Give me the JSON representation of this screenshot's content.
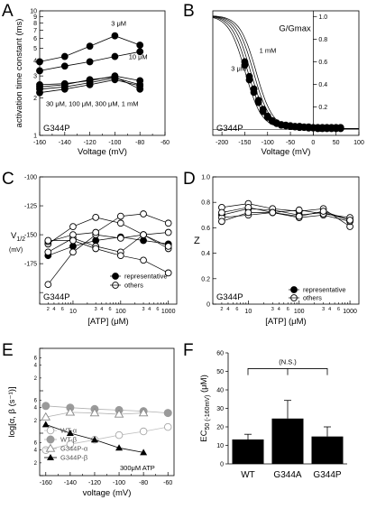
{
  "figure": {
    "panels": [
      {
        "id": "A",
        "annotation": "G344P",
        "conc_labels": [
          "3 μM",
          "10 μM",
          "30 μM, 100 μM, 300 μM, 1 mM"
        ]
      },
      {
        "id": "B",
        "annotation": "G344P",
        "conc_labels": [
          "1 mM",
          "3 μM"
        ]
      },
      {
        "id": "C",
        "annotation": "G344P",
        "legend": [
          "representative",
          "others"
        ]
      },
      {
        "id": "D",
        "annotation": "G344P",
        "legend": [
          "representative",
          "others"
        ]
      },
      {
        "id": "E",
        "annotation": "300μM ATP",
        "legend": [
          "WT-α",
          "WT-β",
          "G344P-α",
          "G344P-β"
        ]
      },
      {
        "id": "F",
        "significance": "(N.S.)"
      }
    ]
  },
  "chart_data": [
    {
      "panel": "A",
      "type": "line",
      "xlabel": "Voltage (mV)",
      "ylabel": "activation time constant (ms)",
      "xlim": [
        -160,
        -60
      ],
      "ylim": [
        1,
        10
      ],
      "yscale": "log",
      "xticks": [
        -160,
        -140,
        -120,
        -100,
        -80,
        -60
      ],
      "yticks": [
        1,
        2,
        3,
        4,
        5,
        6,
        7,
        8,
        9,
        10
      ],
      "ytick_labels": [
        "1",
        "2",
        "3",
        "4",
        "5",
        "6",
        "7",
        "8",
        "9",
        "10"
      ],
      "x": [
        -160,
        -140,
        -120,
        -100,
        -80
      ],
      "series": [
        {
          "name": "3 μM",
          "values": [
            3.9,
            4.3,
            5.2,
            6.3,
            5.3
          ]
        },
        {
          "name": "10 μM",
          "values": [
            3.3,
            3.6,
            3.9,
            4.3,
            4.7
          ]
        },
        {
          "values": [
            2.55,
            2.6,
            2.75,
            3.0,
            2.75
          ]
        },
        {
          "values": [
            2.45,
            2.55,
            2.8,
            2.95,
            2.35
          ]
        },
        {
          "values": [
            2.35,
            2.45,
            2.65,
            2.9,
            2.55
          ]
        },
        {
          "values": [
            2.2,
            2.35,
            2.55,
            2.8,
            2.5
          ]
        }
      ]
    },
    {
      "panel": "B",
      "type": "line",
      "xlabel": "Voltage (mV)",
      "ylabel": "G/Gmax",
      "xlim": [
        -220,
        100
      ],
      "ylim": [
        -0.05,
        1.05
      ],
      "xticks": [
        -200,
        -150,
        -100,
        -50,
        0,
        50,
        100
      ],
      "yticks": [
        0,
        0.2,
        0.4,
        0.6,
        0.8,
        1.0
      ],
      "ytick_labels": [
        "0",
        "0.2",
        "0.4",
        "0.6",
        "0.8",
        "1.0"
      ],
      "x": [
        -150,
        -140,
        -130,
        -120,
        -110,
        -100,
        -90,
        -80,
        -70,
        -60,
        -50,
        -40,
        -30,
        -20,
        -10,
        0,
        10,
        20,
        30,
        40,
        50,
        60
      ],
      "series": [
        {
          "name": "3 μM",
          "values": [
            0.6,
            0.47,
            0.36,
            0.26,
            0.18,
            0.12,
            0.08,
            0.06,
            0.045,
            0.04,
            0.035,
            0.03,
            0.03,
            0.025,
            0.025,
            0.02,
            0.02,
            0.02,
            0.02,
            0.02,
            0.02,
            0.02
          ]
        },
        {
          "name": "1 mM",
          "values": [
            0.57,
            0.44,
            0.33,
            0.24,
            0.16,
            0.11,
            0.075,
            0.055,
            0.04,
            0.035,
            0.03,
            0.025,
            0.02,
            0.02,
            0.015,
            0.015,
            0.01,
            0.01,
            0.01,
            0.01,
            0.01,
            0.01
          ]
        }
      ]
    },
    {
      "panel": "C",
      "type": "line",
      "xlabel": "[ATP] (μM)",
      "ylabel": "V1/2 (mV)",
      "xscale": "log",
      "xlim": [
        2,
        1500
      ],
      "ylim": [
        -210,
        -100
      ],
      "xticks": [
        10,
        100,
        1000
      ],
      "xtick_labels": [
        "10",
        "100",
        "1000"
      ],
      "yticks": [
        -200,
        -175,
        -150,
        -125,
        -100
      ],
      "ytick_labels": [
        "",
        "-175",
        "-150",
        "-125",
        "-100"
      ],
      "x": [
        3,
        10,
        30,
        100,
        300,
        1000
      ],
      "series": [
        {
          "name": "representative",
          "values": [
            -168,
            -160,
            -155,
            -152,
            -155,
            -158
          ]
        },
        {
          "name": "others",
          "values": [
            -193,
            -165,
            -150,
            -153,
            -150,
            -162
          ]
        },
        {
          "values": [
            -158,
            -143,
            -135,
            -140,
            -150,
            -148
          ]
        },
        {
          "values": [
            -165,
            -153,
            -160,
            -165,
            -150,
            -160
          ]
        },
        {
          "values": [
            -156,
            -150,
            -148,
            -134,
            -132,
            -140
          ]
        },
        {
          "values": [
            -155,
            -155,
            -162,
            -168,
            -172,
            -183
          ]
        }
      ]
    },
    {
      "panel": "D",
      "type": "line",
      "xlabel": "[ATP] (μM)",
      "ylabel": "Z",
      "xscale": "log",
      "xlim": [
        2,
        1500
      ],
      "ylim": [
        0,
        1
      ],
      "xticks": [
        10,
        100,
        1000
      ],
      "xtick_labels": [
        "10",
        "100",
        "1000"
      ],
      "yticks": [
        0,
        0.2,
        0.4,
        0.6,
        0.8,
        1.0
      ],
      "ytick_labels": [
        "0",
        "0.2",
        "0.4",
        "0.6",
        "0.8",
        "1.0"
      ],
      "x": [
        3,
        10,
        30,
        100,
        300,
        1000
      ],
      "series": [
        {
          "name": "representative",
          "values": [
            0.7,
            0.75,
            0.74,
            0.7,
            0.72,
            0.66
          ]
        },
        {
          "name": "others",
          "values": [
            0.76,
            0.79,
            0.75,
            0.73,
            0.75,
            0.61
          ]
        },
        {
          "values": [
            0.68,
            0.7,
            0.72,
            0.68,
            0.7,
            0.65
          ]
        },
        {
          "values": [
            0.72,
            0.76,
            0.72,
            0.74,
            0.71,
            0.68
          ]
        },
        {
          "values": [
            0.65,
            0.72,
            0.72,
            0.69,
            0.73,
            0.66
          ]
        }
      ]
    },
    {
      "panel": "E",
      "type": "line",
      "xlabel": "voltage (mV)",
      "ylabel": "log[α, β (s⁻¹)]",
      "xlim": [
        -165,
        -55
      ],
      "ylim": [
        -1,
        2
      ],
      "yscale": "log",
      "xticks": [
        -160,
        -140,
        -120,
        -100,
        -80,
        -60
      ],
      "yticks": [
        -1,
        0,
        1,
        2
      ],
      "ytick_labels": [
        "10⁻¹",
        "10⁰",
        "10¹",
        "10²"
      ],
      "x": [
        -160,
        -140,
        -120,
        -100,
        -80,
        -60
      ],
      "series": [
        {
          "name": "WT-α",
          "values": [
            0.4,
            0.55,
            0.7,
            0.9,
            1.1,
            1.4
          ]
        },
        {
          "name": "WT-β",
          "values": [
            4.4,
            4.0,
            3.7,
            3.5,
            3.3,
            3.0
          ]
        },
        {
          "name": "G344P-α",
          "values": [
            2.4,
            3.1,
            3.0,
            2.8,
            3.0,
            null
          ]
        },
        {
          "name": "G344P-β",
          "values": [
            1.6,
            1.0,
            0.7,
            0.45,
            0.35,
            null
          ]
        }
      ]
    },
    {
      "panel": "F",
      "type": "bar",
      "ylabel": "EC50 (-160mV) (μM)",
      "ylim": [
        0,
        60
      ],
      "yticks": [
        0,
        10,
        20,
        30,
        40,
        50,
        60
      ],
      "categories": [
        "WT",
        "G344A",
        "G344P"
      ],
      "values": [
        13.2,
        24.5,
        14.8
      ],
      "errors": [
        2.8,
        9.8,
        5.2
      ]
    }
  ]
}
